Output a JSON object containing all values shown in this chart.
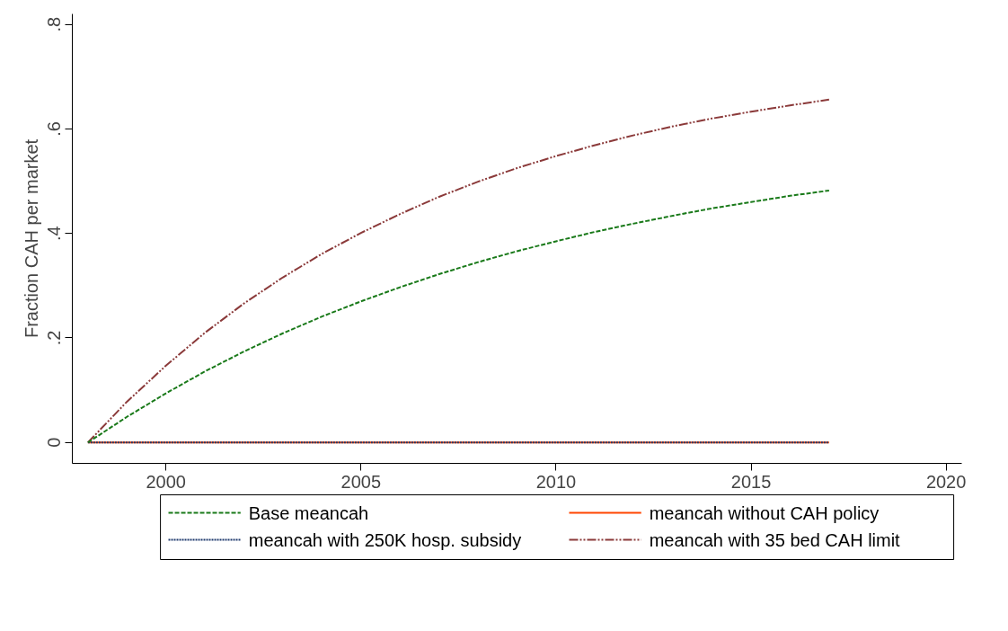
{
  "chart_data": {
    "type": "line",
    "ylabel": "Fraction CAH per market",
    "x": [
      1998,
      1999,
      2000,
      2001,
      2002,
      2003,
      2004,
      2005,
      2006,
      2007,
      2008,
      2009,
      2010,
      2011,
      2012,
      2013,
      2014,
      2015,
      2016,
      2017
    ],
    "series": [
      {
        "name": "Base meancah",
        "color": "#1a7a1a",
        "line_style": "dashed",
        "values": [
          0,
          0.049,
          0.094,
          0.136,
          0.174,
          0.209,
          0.241,
          0.27,
          0.297,
          0.322,
          0.345,
          0.366,
          0.385,
          0.403,
          0.419,
          0.434,
          0.448,
          0.46,
          0.472,
          0.482
        ]
      },
      {
        "name": "meancah without CAH policy",
        "color": "#ff4500",
        "line_style": "solid",
        "values": [
          0,
          0,
          0,
          0,
          0,
          0,
          0,
          0,
          0,
          0,
          0,
          0,
          0,
          0,
          0,
          0,
          0,
          0,
          0,
          0
        ]
      },
      {
        "name": "meancah with 250K hosp. subsidy",
        "color": "#1f3a6e",
        "line_style": "dotted",
        "values": [
          0,
          0,
          0,
          0,
          0,
          0,
          0,
          0,
          0,
          0,
          0,
          0,
          0,
          0,
          0,
          0,
          0,
          0,
          0,
          0
        ]
      },
      {
        "name": "meancah with 35 bed CAH limit",
        "color": "#8b3a3a",
        "line_style": "dashdot",
        "values": [
          0,
          0.078,
          0.147,
          0.21,
          0.266,
          0.316,
          0.361,
          0.401,
          0.437,
          0.47,
          0.499,
          0.525,
          0.548,
          0.569,
          0.588,
          0.605,
          0.62,
          0.633,
          0.645,
          0.656
        ]
      }
    ],
    "xlim": [
      1997.6,
      2020.4
    ],
    "xticks": [
      2000,
      2005,
      2010,
      2015,
      2020
    ],
    "ylim": [
      -0.04,
      0.82
    ],
    "yticks": [
      {
        "value": 0,
        "label": "0"
      },
      {
        "value": 0.2,
        "label": ".2"
      },
      {
        "value": 0.4,
        "label": ".4"
      },
      {
        "value": 0.6,
        "label": ".6"
      },
      {
        "value": 0.8,
        "label": ".8"
      }
    ],
    "grid": false,
    "legend": "bottom",
    "marker": "none"
  }
}
